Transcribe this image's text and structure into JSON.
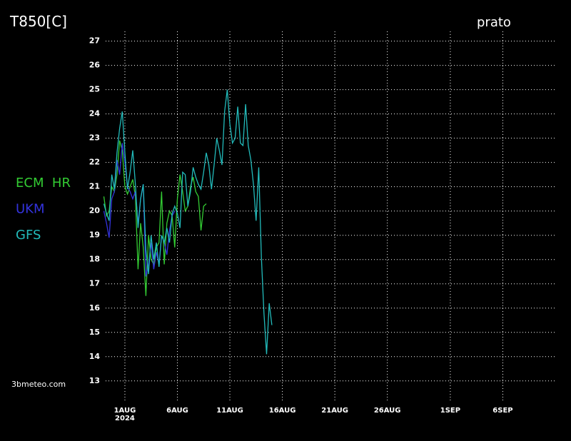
{
  "chart_data": {
    "type": "line",
    "title": "T850[C]",
    "subtitle": "prato",
    "source": "3bmeteo.com",
    "x_year_label": "2024",
    "x": [
      "2024-07-30T00:00Z",
      "2024-07-30T06:00Z",
      "2024-07-30T12:00Z",
      "2024-07-30T18:00Z",
      "2024-07-31T00:00Z",
      "2024-07-31T06:00Z",
      "2024-07-31T12:00Z",
      "2024-07-31T18:00Z",
      "2024-08-01T00:00Z",
      "2024-08-01T06:00Z",
      "2024-08-01T12:00Z",
      "2024-08-01T18:00Z",
      "2024-08-02T00:00Z",
      "2024-08-02T06:00Z",
      "2024-08-02T12:00Z",
      "2024-08-02T18:00Z",
      "2024-08-03T00:00Z",
      "2024-08-03T06:00Z",
      "2024-08-03T12:00Z",
      "2024-08-03T18:00Z",
      "2024-08-04T00:00Z",
      "2024-08-04T06:00Z",
      "2024-08-04T12:00Z",
      "2024-08-04T18:00Z",
      "2024-08-05T00:00Z",
      "2024-08-05T06:00Z",
      "2024-08-05T12:00Z",
      "2024-08-05T18:00Z",
      "2024-08-06T00:00Z",
      "2024-08-06T06:00Z",
      "2024-08-06T12:00Z",
      "2024-08-06T18:00Z",
      "2024-08-07T00:00Z",
      "2024-08-07T06:00Z",
      "2024-08-07T12:00Z",
      "2024-08-07T18:00Z",
      "2024-08-08T00:00Z",
      "2024-08-08T06:00Z",
      "2024-08-08T12:00Z",
      "2024-08-08T18:00Z",
      "2024-08-09T00:00Z",
      "2024-08-09T06:00Z",
      "2024-08-09T12:00Z",
      "2024-08-09T18:00Z",
      "2024-08-10T00:00Z",
      "2024-08-10T06:00Z",
      "2024-08-10T12:00Z",
      "2024-08-10T18:00Z",
      "2024-08-11T00:00Z",
      "2024-08-11T06:00Z",
      "2024-08-11T12:00Z",
      "2024-08-11T18:00Z",
      "2024-08-12T00:00Z",
      "2024-08-12T06:00Z",
      "2024-08-12T12:00Z",
      "2024-08-12T18:00Z",
      "2024-08-13T00:00Z",
      "2024-08-13T06:00Z",
      "2024-08-13T12:00Z",
      "2024-08-13T18:00Z",
      "2024-08-14T00:00Z",
      "2024-08-14T06:00Z",
      "2024-08-14T12:00Z",
      "2024-08-14T18:00Z",
      "2024-08-15T00:00Z"
    ],
    "series": [
      {
        "name": "ECM  HR",
        "color": "#33cc33",
        "values": [
          20.6,
          19.8,
          20.0,
          21.0,
          20.8,
          21.5,
          22.9,
          22.5,
          21.0,
          20.7,
          21.0,
          21.3,
          20.6,
          17.6,
          19.5,
          18.5,
          16.5,
          19.0,
          18.0,
          17.8,
          18.5,
          18.7,
          20.8,
          17.8,
          19.5,
          20.0,
          19.8,
          18.5,
          20.5,
          21.5,
          20.8,
          20.0,
          20.2,
          21.0,
          21.4,
          20.8,
          20.6,
          19.2,
          20.2,
          20.3,
          null,
          null,
          null,
          null,
          null,
          null,
          null,
          null,
          null,
          null,
          null,
          null,
          null,
          null,
          null,
          null,
          null,
          null,
          null,
          null,
          null,
          null,
          null,
          null,
          null
        ]
      },
      {
        "name": "UKM",
        "color": "#3333dd",
        "values": [
          20.0,
          19.5,
          18.9,
          20.5,
          20.8,
          22.1,
          21.5,
          22.8,
          22.0,
          21.0,
          20.8,
          20.5,
          20.8,
          19.5,
          20.5,
          21.1,
          17.3,
          17.8,
          18.7,
          17.6,
          18.3,
          17.8,
          19.0,
          18.7,
          18.2,
          19.2,
          19.8,
          20.0,
          null,
          null,
          null,
          null,
          null,
          null,
          null,
          null,
          null,
          null,
          null,
          null,
          null,
          null,
          null,
          null,
          null,
          null,
          null,
          null,
          null,
          null,
          null,
          null,
          null,
          null,
          null,
          null,
          null,
          null,
          null,
          null,
          null,
          null,
          null,
          null,
          null
        ]
      },
      {
        "name": "GFS",
        "color": "#22bbbb",
        "values": [
          20.3,
          19.9,
          19.6,
          21.5,
          20.9,
          22.4,
          23.4,
          24.1,
          22.4,
          20.9,
          21.6,
          22.5,
          21.1,
          19.3,
          20.5,
          21.1,
          18.4,
          17.4,
          19.0,
          18.0,
          18.7,
          17.7,
          19.0,
          18.7,
          19.3,
          18.7,
          19.9,
          20.2,
          19.9,
          19.3,
          21.6,
          21.5,
          20.2,
          20.8,
          21.8,
          21.4,
          21.1,
          20.9,
          21.6,
          22.4,
          21.9,
          20.9,
          21.9,
          23.0,
          22.5,
          21.9,
          24.1,
          25.0,
          23.6,
          22.8,
          23.0,
          24.3,
          22.8,
          22.7,
          24.4,
          22.7,
          22.1,
          21.1,
          19.6,
          21.8,
          18.1,
          15.8,
          14.1,
          16.2,
          15.3
        ]
      }
    ],
    "xlim": [
      "2024-07-30T04:00Z",
      "2024-09-11T00:00Z"
    ],
    "xticks": [
      {
        "value": "2024-08-01T00:00Z",
        "label": "1AUG"
      },
      {
        "value": "2024-08-06T00:00Z",
        "label": "6AUG"
      },
      {
        "value": "2024-08-11T00:00Z",
        "label": "11AUG"
      },
      {
        "value": "2024-08-16T00:00Z",
        "label": "16AUG"
      },
      {
        "value": "2024-08-21T00:00Z",
        "label": "21AUG"
      },
      {
        "value": "2024-08-26T00:00Z",
        "label": "26AUG"
      },
      {
        "value": "2024-09-01T00:00Z",
        "label": "1SEP"
      },
      {
        "value": "2024-09-06T00:00Z",
        "label": "6SEP"
      }
    ],
    "ylim": [
      12.2,
      27.4
    ],
    "yticks": [
      13,
      14,
      15,
      16,
      17,
      18,
      19,
      20,
      21,
      22,
      23,
      24,
      25,
      26,
      27
    ],
    "grid": true
  }
}
